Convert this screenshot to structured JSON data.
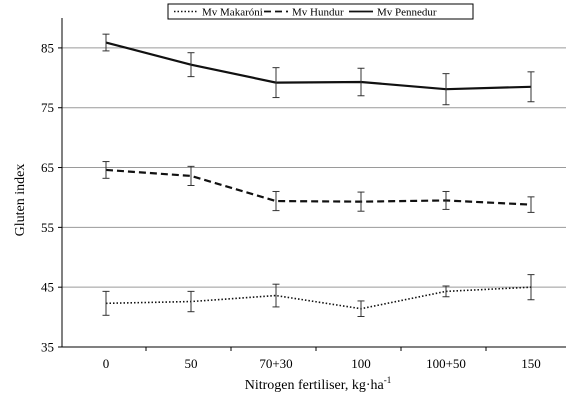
{
  "chart_data": {
    "type": "line",
    "title": "",
    "xlabel": "Nitrogen fertiliser, kg·ha",
    "xlabel_superscript": "-1",
    "ylabel": "Gluten index",
    "categories": [
      "0",
      "50",
      "70+30",
      "100",
      "100+50",
      "150"
    ],
    "ylim": [
      35,
      90
    ],
    "yticks": [
      35,
      45,
      55,
      65,
      75,
      85
    ],
    "grid": true,
    "legend_position": "top-center",
    "series": [
      {
        "name": "Mv Makaróni",
        "line_style": "dotted",
        "values": [
          42.3,
          42.6,
          43.6,
          41.4,
          44.3,
          45.0
        ],
        "error": [
          2.0,
          1.7,
          1.9,
          1.3,
          0.9,
          2.1
        ]
      },
      {
        "name": "Mv Hundur",
        "line_style": "dashed",
        "values": [
          64.6,
          63.6,
          59.4,
          59.3,
          59.5,
          58.8
        ],
        "error": [
          1.4,
          1.6,
          1.6,
          1.6,
          1.5,
          1.3
        ]
      },
      {
        "name": "Mv Pennedur",
        "line_style": "solid",
        "values": [
          85.9,
          82.2,
          79.2,
          79.3,
          78.1,
          78.5
        ],
        "error": [
          1.4,
          2.0,
          2.5,
          2.3,
          2.6,
          2.5
        ]
      }
    ]
  }
}
